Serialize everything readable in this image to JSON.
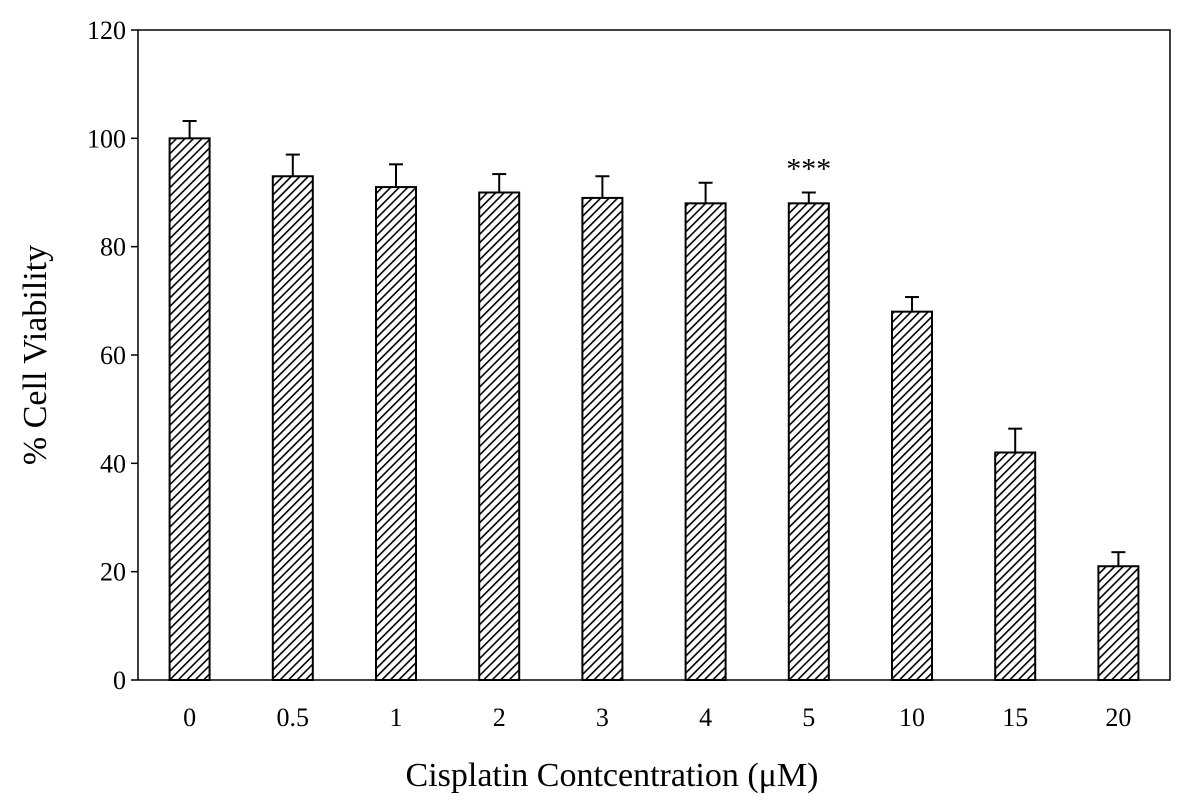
{
  "chart_data": {
    "type": "bar",
    "categories": [
      "0",
      "0.5",
      "1",
      "2",
      "3",
      "4",
      "5",
      "10",
      "15",
      "20"
    ],
    "values": [
      100,
      93,
      91,
      90,
      89,
      88,
      88,
      68,
      42,
      21
    ],
    "errors": [
      3.2,
      4,
      4.2,
      3.4,
      4,
      3.8,
      2,
      2.7,
      4.4,
      2.6
    ],
    "xlabel": "Cisplatin Contcentration (μM)",
    "ylabel": "% Cell Viability",
    "ylim": [
      0,
      120
    ],
    "yticks": [
      0,
      20,
      40,
      60,
      80,
      100,
      120
    ],
    "grid": false,
    "fill_pattern": "diagonal-hatch",
    "bar_color": "#000000",
    "annotations": [
      {
        "category": "5",
        "text": "***"
      }
    ]
  }
}
